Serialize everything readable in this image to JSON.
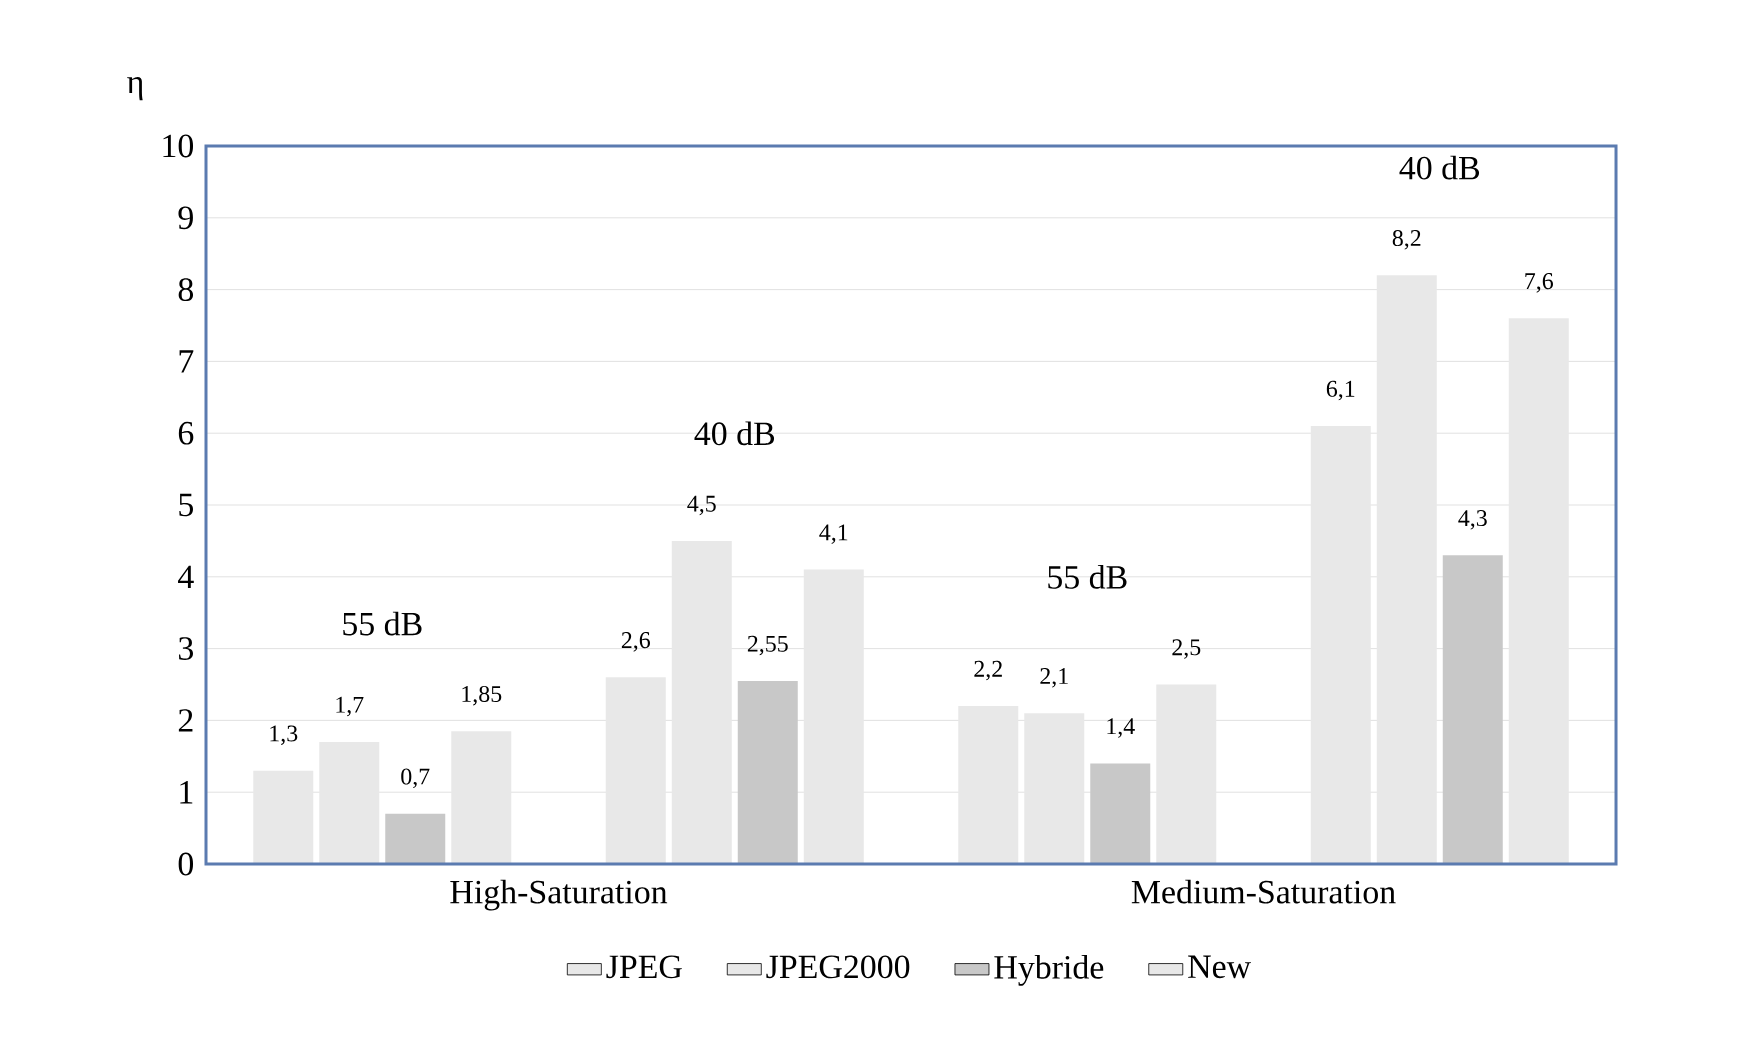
{
  "chart_data": {
    "type": "bar",
    "ylabel": "η",
    "categories": [
      "55 dB",
      "40 dB",
      "55 dB",
      "40 dB"
    ],
    "annotations": [
      "High-Saturation",
      "Medium-Saturation"
    ],
    "series": [
      {
        "name": "JPEG",
        "color": "#e8e8e8",
        "values": [
          1.3,
          2.6,
          2.2,
          6.1
        ],
        "value_labels": [
          "1,3",
          "2,6",
          "2,2",
          "6,1"
        ]
      },
      {
        "name": "JPEG2000",
        "color": "#e8e8e8",
        "values": [
          1.7,
          4.5,
          2.1,
          8.2
        ],
        "value_labels": [
          "1,7",
          "4,5",
          "2,1",
          "8,2"
        ]
      },
      {
        "name": "Hybride",
        "color": "#c8c8c8",
        "values": [
          0.7,
          2.55,
          1.4,
          4.3
        ],
        "value_labels": [
          "0,7",
          "2,55",
          "1,4",
          "4,3"
        ]
      },
      {
        "name": "New",
        "color": "#e8e8e8",
        "values": [
          1.85,
          4.1,
          2.5,
          7.6
        ],
        "value_labels": [
          "1,85",
          "4,1",
          "2,5",
          "7,6"
        ]
      }
    ],
    "ylim": [
      0,
      10
    ],
    "yticks": [
      0,
      1,
      2,
      3,
      4,
      5,
      6,
      7,
      8,
      9,
      10
    ],
    "grid": "y",
    "legend": "bottom"
  }
}
